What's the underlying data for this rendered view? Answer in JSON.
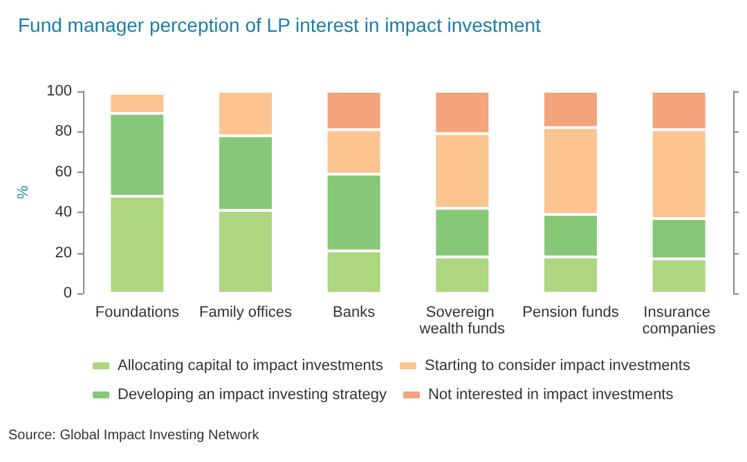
{
  "chart_data": {
    "type": "bar",
    "stacked": true,
    "title": "Fund manager perception of LP interest in impact investment",
    "ylabel": "%",
    "categories": [
      "Foundations",
      "Family offices",
      "Banks",
      "Sovereign wealth funds",
      "Pension funds",
      "Insurance companies"
    ],
    "series": [
      {
        "name": "Allocating capital to impact investments",
        "color": "#aed580",
        "values": [
          48,
          41,
          21,
          18,
          18,
          17
        ]
      },
      {
        "name": "Developing an impact investing strategy",
        "color": "#86c878",
        "values": [
          41,
          37,
          38,
          24,
          21,
          20
        ]
      },
      {
        "name": "Starting to consider impact investments",
        "color": "#fbc490",
        "values": [
          10,
          22,
          22,
          37,
          43,
          44
        ]
      },
      {
        "name": "Not interested in impact investments",
        "color": "#f4a47c",
        "values": [
          1,
          null,
          19,
          21,
          18,
          19
        ]
      }
    ],
    "ylim": [
      0,
      100
    ],
    "yticks": [
      0,
      20,
      40,
      60,
      80,
      100
    ],
    "grid": false,
    "legend": "bottom",
    "annotations": [
      "Source: Global Impact Investing Network"
    ]
  }
}
